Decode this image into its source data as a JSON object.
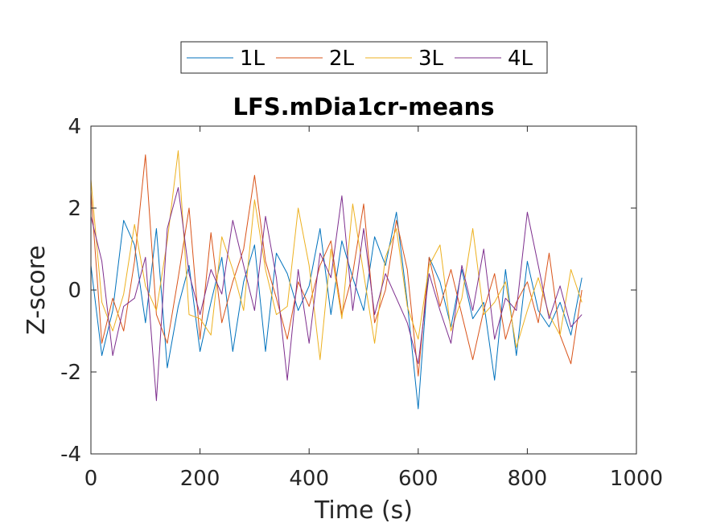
{
  "chart_data": {
    "type": "line",
    "title": "LFS.mDia1cr-means",
    "xlabel": "Time (s)",
    "ylabel": "Z-score",
    "xlim": [
      0,
      1000
    ],
    "ylim": [
      -4,
      4
    ],
    "xticks": [
      0,
      200,
      400,
      600,
      800,
      1000
    ],
    "yticks": [
      -4,
      -2,
      0,
      2,
      4
    ],
    "xtick_labels": [
      "0",
      "200",
      "400",
      "600",
      "800",
      "1000"
    ],
    "ytick_labels": [
      "-4",
      "-2",
      "0",
      "2",
      "4"
    ],
    "grid": false,
    "legend_position": "top",
    "legend_orientation": "horizontal",
    "x": [
      0,
      20,
      40,
      60,
      80,
      100,
      120,
      140,
      160,
      180,
      200,
      220,
      240,
      260,
      280,
      300,
      320,
      340,
      360,
      380,
      400,
      420,
      440,
      460,
      480,
      500,
      520,
      540,
      560,
      580,
      600,
      620,
      640,
      660,
      680,
      700,
      720,
      740,
      760,
      780,
      800,
      820,
      840,
      860,
      880,
      900
    ],
    "series": [
      {
        "name": "1L",
        "color": "#0072BD",
        "values": [
          0.6,
          -1.6,
          -0.5,
          1.7,
          1.1,
          -0.8,
          1.5,
          -1.9,
          -0.4,
          0.6,
          -1.5,
          -0.3,
          0.8,
          -1.5,
          0.2,
          1.1,
          -1.5,
          0.9,
          0.4,
          -0.5,
          0.1,
          1.5,
          -0.6,
          1.2,
          0.3,
          -0.5,
          1.3,
          0.6,
          1.9,
          -0.3,
          -2.9,
          0.8,
          0.2,
          -0.9,
          0.5,
          -0.7,
          -0.3,
          -2.2,
          0.5,
          -1.6,
          0.7,
          -0.5,
          -0.9,
          -0.3,
          -1.1,
          0.3
        ]
      },
      {
        "name": "2L",
        "color": "#D95319",
        "values": [
          2.4,
          -1.3,
          -0.2,
          -1.0,
          0.7,
          3.3,
          -0.6,
          -1.3,
          0.3,
          2.0,
          -1.2,
          1.4,
          -0.8,
          0.2,
          1.0,
          2.8,
          0.7,
          -0.2,
          -1.2,
          0.2,
          -0.4,
          0.6,
          1.2,
          -0.6,
          0.4,
          2.1,
          -0.8,
          0.0,
          1.7,
          0.5,
          -2.1,
          0.8,
          -0.4,
          0.5,
          -0.6,
          -1.7,
          -0.5,
          0.4,
          -1.2,
          -0.3,
          0.2,
          -0.8,
          0.9,
          -1.1,
          -1.8,
          0.0
        ]
      },
      {
        "name": "3L",
        "color": "#EDB120",
        "values": [
          2.7,
          -0.3,
          -1.0,
          -0.1,
          1.6,
          0.1,
          -0.5,
          1.2,
          3.4,
          -0.6,
          -0.7,
          -1.1,
          1.3,
          0.5,
          -0.5,
          2.2,
          0.5,
          -0.6,
          -0.4,
          2.0,
          0.6,
          -1.7,
          1.0,
          -0.7,
          2.1,
          0.4,
          -1.3,
          0.8,
          1.5,
          -0.4,
          -1.2,
          0.6,
          1.1,
          -1.0,
          -0.2,
          1.5,
          -0.6,
          -0.3,
          0.2,
          -1.4,
          -0.5,
          0.3,
          -0.6,
          -1.1,
          0.5,
          -0.3
        ]
      },
      {
        "name": "4L",
        "color": "#7E2F8E",
        "values": [
          1.8,
          0.7,
          -1.6,
          -0.4,
          -0.2,
          0.8,
          -2.7,
          1.5,
          2.5,
          0.4,
          -0.6,
          0.5,
          -0.1,
          1.7,
          0.6,
          -0.5,
          1.8,
          0.3,
          -2.2,
          0.5,
          -1.3,
          0.9,
          0.3,
          2.3,
          -0.5,
          1.5,
          -0.6,
          0.4,
          -0.2,
          -0.8,
          -1.8,
          0.4,
          -0.5,
          -1.3,
          0.6,
          -0.5,
          1.0,
          -1.2,
          -0.2,
          -0.5,
          1.9,
          0.6,
          -0.7,
          0.1,
          -0.9,
          -0.6
        ]
      }
    ]
  }
}
